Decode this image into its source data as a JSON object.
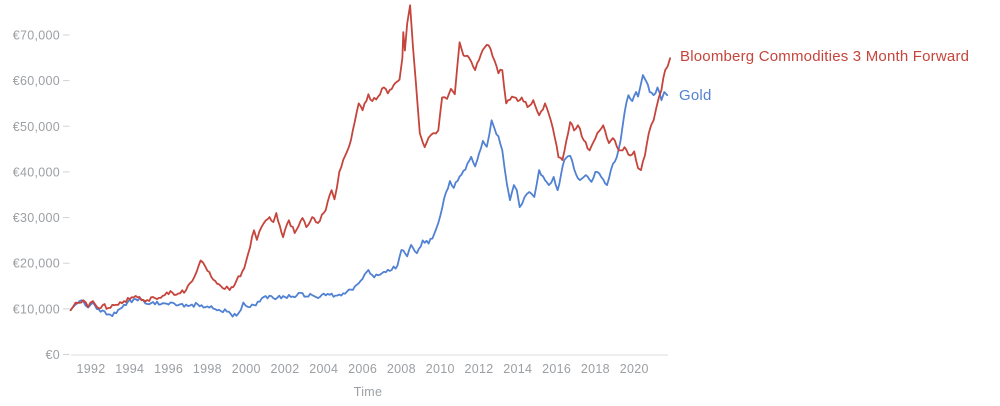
{
  "page": {
    "background": "#ffffff"
  },
  "legend": {
    "bloomberg_label": "Bloomberg Commodities 3 Month Forward",
    "gold_label": "Gold"
  },
  "chart_data": {
    "type": "line",
    "title": "",
    "xlabel": "Time",
    "ylabel": "",
    "currency": "EUR",
    "grid": false,
    "legend_position": "right of line ends",
    "x_range": [
      1990.9,
      2022.4
    ],
    "ylim": [
      0,
      78000
    ],
    "x_ticks": [
      1992,
      1994,
      1996,
      1998,
      2000,
      2002,
      2004,
      2006,
      2008,
      2010,
      2012,
      2014,
      2016,
      2018,
      2020
    ],
    "y_ticks": [
      {
        "value": 0,
        "label": "€0"
      },
      {
        "value": 10000,
        "label": "€10,000"
      },
      {
        "value": 20000,
        "label": "€20,000"
      },
      {
        "value": 30000,
        "label": "€30,000"
      },
      {
        "value": 40000,
        "label": "€40,000"
      },
      {
        "value": 50000,
        "label": "€50,000"
      },
      {
        "value": 60000,
        "label": "€60,000"
      },
      {
        "value": 70000,
        "label": "€70,000"
      }
    ],
    "style": {
      "axis_text_color": "#9b9fa3",
      "axis_line_color": "#e3e4e6",
      "tick_mark_color": "#d0d3d6",
      "line_width": 1.8
    },
    "series": [
      {
        "name": "Bloomberg Commodities 3 Month Forward",
        "color": "#c5453c",
        "points": [
          [
            1990.95,
            9700
          ],
          [
            1991.1,
            10600
          ],
          [
            1991.3,
            11300
          ],
          [
            1991.6,
            11900
          ],
          [
            1991.85,
            10400
          ],
          [
            1992.1,
            11700
          ],
          [
            1992.4,
            10100
          ],
          [
            1992.6,
            10800
          ],
          [
            1992.9,
            10200
          ],
          [
            1993.2,
            10800
          ],
          [
            1993.7,
            11700
          ],
          [
            1994.0,
            12100
          ],
          [
            1994.2,
            12500
          ],
          [
            1994.5,
            12600
          ],
          [
            1994.8,
            11600
          ],
          [
            1995.2,
            12600
          ],
          [
            1995.5,
            12400
          ],
          [
            1995.8,
            13000
          ],
          [
            1996.1,
            13900
          ],
          [
            1996.4,
            13100
          ],
          [
            1996.9,
            14100
          ],
          [
            1997.1,
            15600
          ],
          [
            1997.35,
            17200
          ],
          [
            1997.65,
            20600
          ],
          [
            1997.9,
            19200
          ],
          [
            1998.2,
            17000
          ],
          [
            1998.5,
            15500
          ],
          [
            1998.8,
            14500
          ],
          [
            1999.0,
            14900
          ],
          [
            1999.15,
            14100
          ],
          [
            1999.5,
            16200
          ],
          [
            1999.8,
            18200
          ],
          [
            2000.0,
            20500
          ],
          [
            2000.2,
            23500
          ],
          [
            2000.4,
            27200
          ],
          [
            2000.55,
            25100
          ],
          [
            2000.8,
            28000
          ],
          [
            2001.2,
            30100
          ],
          [
            2001.4,
            29000
          ],
          [
            2001.55,
            31000
          ],
          [
            2001.9,
            25700
          ],
          [
            2002.2,
            29400
          ],
          [
            2002.5,
            26600
          ],
          [
            2002.9,
            29900
          ],
          [
            2003.1,
            27900
          ],
          [
            2003.4,
            30100
          ],
          [
            2003.7,
            28800
          ],
          [
            2004.1,
            31600
          ],
          [
            2004.4,
            36000
          ],
          [
            2004.55,
            34000
          ],
          [
            2004.8,
            40000
          ],
          [
            2005.0,
            42600
          ],
          [
            2005.2,
            44500
          ],
          [
            2005.4,
            47000
          ],
          [
            2005.6,
            51000
          ],
          [
            2005.8,
            55000
          ],
          [
            2006.0,
            53500
          ],
          [
            2006.3,
            57000
          ],
          [
            2006.5,
            55500
          ],
          [
            2006.8,
            56500
          ],
          [
            2007.1,
            58500
          ],
          [
            2007.3,
            57200
          ],
          [
            2007.6,
            59000
          ],
          [
            2007.9,
            60200
          ],
          [
            2008.05,
            65000
          ],
          [
            2008.1,
            70600
          ],
          [
            2008.18,
            66600
          ],
          [
            2008.3,
            72500
          ],
          [
            2008.45,
            76500
          ],
          [
            2008.6,
            67300
          ],
          [
            2008.75,
            59500
          ],
          [
            2008.95,
            48500
          ],
          [
            2009.1,
            46500
          ],
          [
            2009.2,
            45400
          ],
          [
            2009.4,
            47500
          ],
          [
            2009.65,
            48500
          ],
          [
            2009.9,
            49100
          ],
          [
            2010.1,
            56300
          ],
          [
            2010.35,
            56000
          ],
          [
            2010.55,
            58200
          ],
          [
            2010.75,
            57000
          ],
          [
            2011.0,
            68400
          ],
          [
            2011.2,
            65500
          ],
          [
            2011.5,
            64900
          ],
          [
            2011.8,
            62300
          ],
          [
            2012.0,
            64500
          ],
          [
            2012.3,
            67300
          ],
          [
            2012.5,
            67700
          ],
          [
            2012.8,
            64400
          ],
          [
            2013.0,
            61600
          ],
          [
            2013.2,
            62300
          ],
          [
            2013.4,
            55000
          ],
          [
            2013.7,
            56500
          ],
          [
            2014.0,
            55500
          ],
          [
            2014.2,
            56300
          ],
          [
            2014.5,
            54200
          ],
          [
            2014.8,
            55700
          ],
          [
            2015.1,
            52400
          ],
          [
            2015.4,
            55000
          ],
          [
            2015.7,
            51300
          ],
          [
            2015.9,
            47600
          ],
          [
            2016.1,
            43200
          ],
          [
            2016.3,
            42600
          ],
          [
            2016.7,
            50900
          ],
          [
            2016.9,
            49100
          ],
          [
            2017.1,
            50200
          ],
          [
            2017.4,
            46900
          ],
          [
            2017.7,
            44700
          ],
          [
            2018.1,
            48500
          ],
          [
            2018.4,
            50200
          ],
          [
            2018.7,
            46300
          ],
          [
            2018.9,
            47400
          ],
          [
            2019.2,
            44700
          ],
          [
            2019.5,
            45400
          ],
          [
            2019.8,
            43600
          ],
          [
            2020.0,
            44500
          ],
          [
            2020.2,
            40800
          ],
          [
            2020.35,
            40400
          ],
          [
            2020.55,
            43600
          ],
          [
            2020.75,
            48500
          ],
          [
            2021.0,
            51300
          ],
          [
            2021.15,
            54200
          ],
          [
            2021.4,
            57900
          ],
          [
            2021.6,
            62300
          ],
          [
            2021.85,
            64900
          ]
        ]
      },
      {
        "name": "Gold",
        "color": "#5181d3",
        "points": [
          [
            1990.95,
            9700
          ],
          [
            1991.1,
            10500
          ],
          [
            1991.3,
            11200
          ],
          [
            1991.6,
            11700
          ],
          [
            1991.85,
            10300
          ],
          [
            1992.1,
            11400
          ],
          [
            1992.4,
            9900
          ],
          [
            1992.9,
            8800
          ],
          [
            1993.1,
            8400
          ],
          [
            1993.4,
            9800
          ],
          [
            1993.7,
            10900
          ],
          [
            1994.2,
            12100
          ],
          [
            1994.5,
            12300
          ],
          [
            1994.8,
            11200
          ],
          [
            1995.2,
            11500
          ],
          [
            1995.6,
            11000
          ],
          [
            1996.1,
            11400
          ],
          [
            1996.5,
            10800
          ],
          [
            1997.0,
            10600
          ],
          [
            1997.5,
            11000
          ],
          [
            1997.8,
            10300
          ],
          [
            1998.2,
            10600
          ],
          [
            1998.6,
            9800
          ],
          [
            1999.0,
            9400
          ],
          [
            1999.3,
            8300
          ],
          [
            1999.6,
            9000
          ],
          [
            1999.85,
            11400
          ],
          [
            2000.1,
            10400
          ],
          [
            2000.4,
            10800
          ],
          [
            2000.9,
            12600
          ],
          [
            2001.3,
            12800
          ],
          [
            2001.6,
            12400
          ],
          [
            2001.9,
            12800
          ],
          [
            2002.3,
            12600
          ],
          [
            2002.8,
            13500
          ],
          [
            2003.1,
            12700
          ],
          [
            2003.4,
            13000
          ],
          [
            2003.8,
            12600
          ],
          [
            2004.2,
            13300
          ],
          [
            2004.6,
            12900
          ],
          [
            2005.0,
            13400
          ],
          [
            2005.4,
            14200
          ],
          [
            2005.8,
            15600
          ],
          [
            2006.1,
            17500
          ],
          [
            2006.3,
            18500
          ],
          [
            2006.6,
            16900
          ],
          [
            2007.0,
            17800
          ],
          [
            2007.4,
            18300
          ],
          [
            2007.8,
            19500
          ],
          [
            2008.0,
            22900
          ],
          [
            2008.3,
            21500
          ],
          [
            2008.5,
            24000
          ],
          [
            2008.8,
            22200
          ],
          [
            2009.1,
            25000
          ],
          [
            2009.4,
            24300
          ],
          [
            2009.7,
            26500
          ],
          [
            2009.9,
            28800
          ],
          [
            2010.1,
            32000
          ],
          [
            2010.3,
            35500
          ],
          [
            2010.5,
            38000
          ],
          [
            2010.7,
            36500
          ],
          [
            2011.0,
            39000
          ],
          [
            2011.3,
            40500
          ],
          [
            2011.6,
            43300
          ],
          [
            2011.8,
            41200
          ],
          [
            2012.0,
            44000
          ],
          [
            2012.2,
            46800
          ],
          [
            2012.4,
            45500
          ],
          [
            2012.65,
            51300
          ],
          [
            2012.8,
            49500
          ],
          [
            2013.0,
            47800
          ],
          [
            2013.2,
            44700
          ],
          [
            2013.45,
            37100
          ],
          [
            2013.6,
            33800
          ],
          [
            2013.8,
            37100
          ],
          [
            2013.95,
            36000
          ],
          [
            2014.1,
            32300
          ],
          [
            2014.35,
            34500
          ],
          [
            2014.6,
            35600
          ],
          [
            2014.85,
            34500
          ],
          [
            2015.1,
            40400
          ],
          [
            2015.4,
            38200
          ],
          [
            2015.6,
            37100
          ],
          [
            2015.85,
            38900
          ],
          [
            2016.05,
            36000
          ],
          [
            2016.4,
            42600
          ],
          [
            2016.7,
            43500
          ],
          [
            2017.0,
            39500
          ],
          [
            2017.2,
            38200
          ],
          [
            2017.5,
            39300
          ],
          [
            2017.8,
            37800
          ],
          [
            2018.0,
            40000
          ],
          [
            2018.3,
            38900
          ],
          [
            2018.6,
            37100
          ],
          [
            2018.8,
            40400
          ],
          [
            2019.1,
            43200
          ],
          [
            2019.3,
            46900
          ],
          [
            2019.5,
            52900
          ],
          [
            2019.7,
            56800
          ],
          [
            2019.9,
            55500
          ],
          [
            2020.1,
            57500
          ],
          [
            2020.2,
            56500
          ],
          [
            2020.45,
            61200
          ],
          [
            2020.6,
            60000
          ],
          [
            2020.8,
            57500
          ],
          [
            2021.0,
            56800
          ],
          [
            2021.2,
            58500
          ],
          [
            2021.4,
            55700
          ],
          [
            2021.55,
            57500
          ],
          [
            2021.7,
            56800
          ]
        ]
      }
    ]
  }
}
